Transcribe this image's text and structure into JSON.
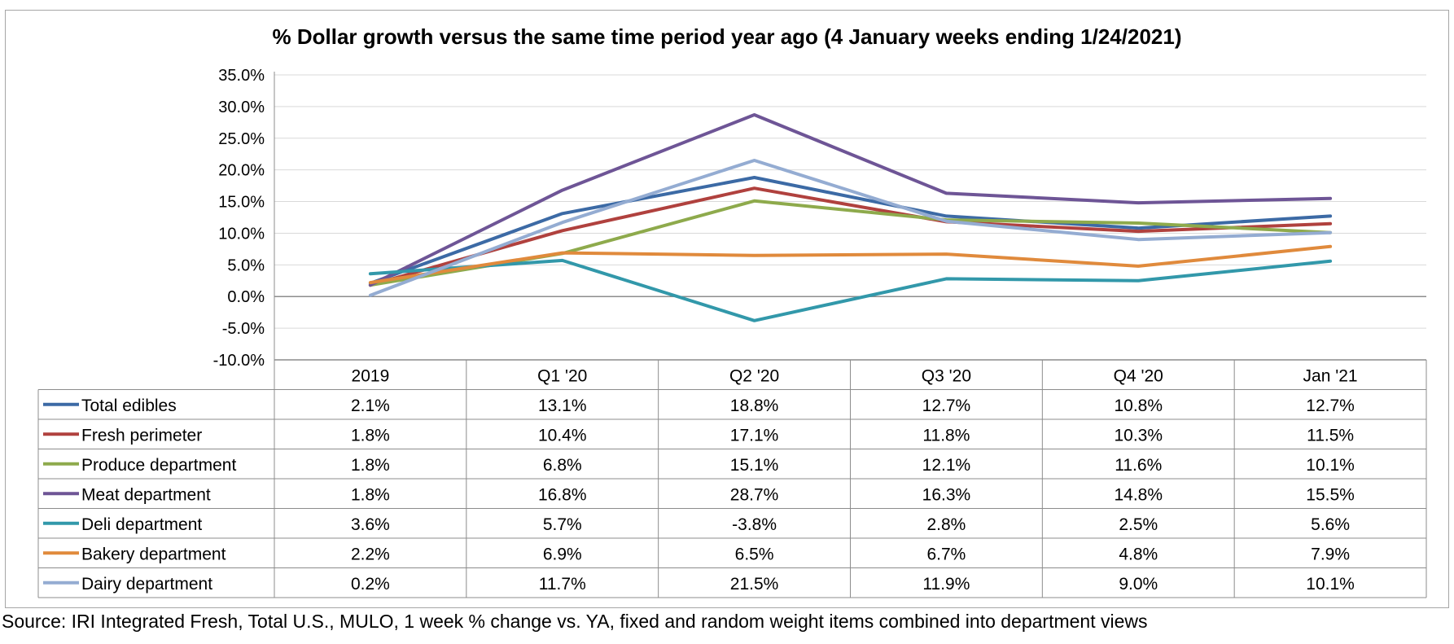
{
  "chart_data": {
    "type": "line",
    "title": "% Dollar growth versus the same time period year ago (4 January weeks ending 1/24/2021)",
    "categories": [
      "2019",
      "Q1 '20",
      "Q2 '20",
      "Q3 '20",
      "Q4 '20",
      "Jan '21"
    ],
    "ylim": [
      -10,
      35
    ],
    "y_ticks": [
      "35.0%",
      "30.0%",
      "25.0%",
      "20.0%",
      "15.0%",
      "10.0%",
      "5.0%",
      "0.0%",
      "-5.0%",
      "-10.0%"
    ],
    "grid": true,
    "legend": "data-table-below",
    "series": [
      {
        "name": "Total edibles",
        "color": "#3c6aa5",
        "values": [
          2.1,
          13.1,
          18.8,
          12.7,
          10.8,
          12.7
        ],
        "labels": [
          "2.1%",
          "13.1%",
          "18.8%",
          "12.7%",
          "10.8%",
          "12.7%"
        ]
      },
      {
        "name": "Fresh perimeter",
        "color": "#b0413e",
        "values": [
          1.8,
          10.4,
          17.1,
          11.8,
          10.3,
          11.5
        ],
        "labels": [
          "1.8%",
          "10.4%",
          "17.1%",
          "11.8%",
          "10.3%",
          "11.5%"
        ]
      },
      {
        "name": "Produce department",
        "color": "#8eaa4c",
        "values": [
          1.8,
          6.8,
          15.1,
          12.1,
          11.6,
          10.1
        ],
        "labels": [
          "1.8%",
          "6.8%",
          "15.1%",
          "12.1%",
          "11.6%",
          "10.1%"
        ]
      },
      {
        "name": "Meat department",
        "color": "#6e5596",
        "values": [
          1.8,
          16.8,
          28.7,
          16.3,
          14.8,
          15.5
        ],
        "labels": [
          "1.8%",
          "16.8%",
          "28.7%",
          "16.3%",
          "14.8%",
          "15.5%"
        ]
      },
      {
        "name": "Deli department",
        "color": "#3298aa",
        "values": [
          3.6,
          5.7,
          -3.8,
          2.8,
          2.5,
          5.6
        ],
        "labels": [
          "3.6%",
          "5.7%",
          "-3.8%",
          "2.8%",
          "2.5%",
          "5.6%"
        ]
      },
      {
        "name": "Bakery department",
        "color": "#e08a3c",
        "values": [
          2.2,
          6.9,
          6.5,
          6.7,
          4.8,
          7.9
        ],
        "labels": [
          "2.2%",
          "6.9%",
          "6.5%",
          "6.7%",
          "4.8%",
          "7.9%"
        ]
      },
      {
        "name": "Dairy department",
        "color": "#94acd2",
        "values": [
          0.2,
          11.7,
          21.5,
          11.9,
          9.0,
          10.1
        ],
        "labels": [
          "0.2%",
          "11.7%",
          "21.5%",
          "11.9%",
          "9.0%",
          "10.1%"
        ]
      }
    ]
  },
  "footer": {
    "source": "Source: IRI Integrated Fresh, Total U.S., MULO, 1 week % change vs. YA, fixed and random weight items combined into department views"
  }
}
